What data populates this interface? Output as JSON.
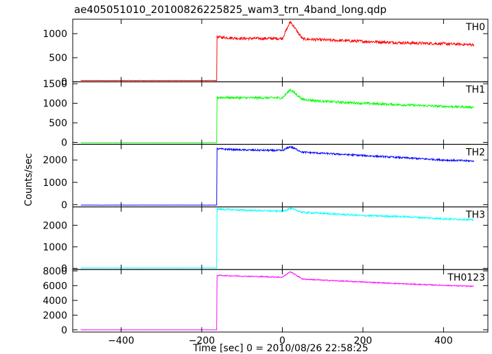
{
  "title": "ae405051010_20100826225825_wam3_trn_4band_long.qdp",
  "ylabel": "Counts/sec",
  "xlabel": "Time [sec] 0 = 2010/08/26 22:58:25",
  "chart_data": {
    "type": "line",
    "title": "ae405051010_20100826225825_wam3_trn_4band_long.qdp",
    "xlabel": "Time [sec] 0 = 2010/08/26 22:58:25",
    "ylabel": "Counts/sec",
    "xlim": [
      -520,
      510
    ],
    "xticks": [
      -400,
      -200,
      0,
      200,
      400
    ],
    "grid": false,
    "shared_x_profile": {
      "start": -500,
      "onset": -162,
      "peak_time": 20,
      "end": 475
    },
    "panels": [
      {
        "name": "TH0",
        "color": "#ff0000",
        "ylim": [
          0,
          1300
        ],
        "yticks": [
          0,
          500,
          1000
        ],
        "series": {
          "x": [
            -500,
            -163,
            -162,
            -100,
            0,
            20,
            50,
            100,
            200,
            300,
            400,
            475
          ],
          "y": [
            25,
            25,
            930,
            900,
            900,
            1250,
            890,
            870,
            840,
            810,
            790,
            770
          ]
        },
        "noise": 30
      },
      {
        "name": "TH1",
        "color": "#00ff00",
        "ylim": [
          -50,
          1550
        ],
        "yticks": [
          0,
          500,
          1000,
          1500
        ],
        "series": {
          "x": [
            -500,
            -163,
            -162,
            -100,
            0,
            20,
            50,
            100,
            200,
            300,
            400,
            475
          ],
          "y": [
            -10,
            -10,
            1150,
            1140,
            1140,
            1350,
            1100,
            1050,
            1000,
            960,
            920,
            900
          ]
        },
        "noise": 30
      },
      {
        "name": "TH2",
        "color": "#0000ff",
        "ylim": [
          -100,
          2700
        ],
        "yticks": [
          0,
          1000,
          2000
        ],
        "series": {
          "x": [
            -500,
            -163,
            -162,
            -100,
            0,
            20,
            50,
            100,
            200,
            300,
            400,
            475
          ],
          "y": [
            -20,
            -20,
            2500,
            2450,
            2420,
            2600,
            2350,
            2300,
            2200,
            2100,
            2000,
            1950
          ]
        },
        "noise": 40
      },
      {
        "name": "TH3",
        "color": "#00ffff",
        "ylim": [
          -50,
          2850
        ],
        "yticks": [
          0,
          1000,
          2000
        ],
        "series": {
          "x": [
            -500,
            -163,
            -162,
            -100,
            0,
            20,
            50,
            100,
            200,
            300,
            400,
            475
          ],
          "y": [
            20,
            20,
            2750,
            2700,
            2650,
            2780,
            2600,
            2550,
            2450,
            2400,
            2300,
            2250
          ]
        },
        "noise": 40
      },
      {
        "name": "TH0123",
        "color": "#ff00ff",
        "ylim": [
          -300,
          8200
        ],
        "yticks": [
          0,
          2000,
          4000,
          6000,
          8000
        ],
        "series": {
          "x": [
            -500,
            -163,
            -162,
            -100,
            0,
            20,
            50,
            100,
            200,
            300,
            400,
            475
          ],
          "y": [
            0,
            0,
            7400,
            7300,
            7150,
            7900,
            6900,
            6750,
            6500,
            6250,
            6050,
            5900
          ]
        },
        "noise": 70
      }
    ]
  }
}
